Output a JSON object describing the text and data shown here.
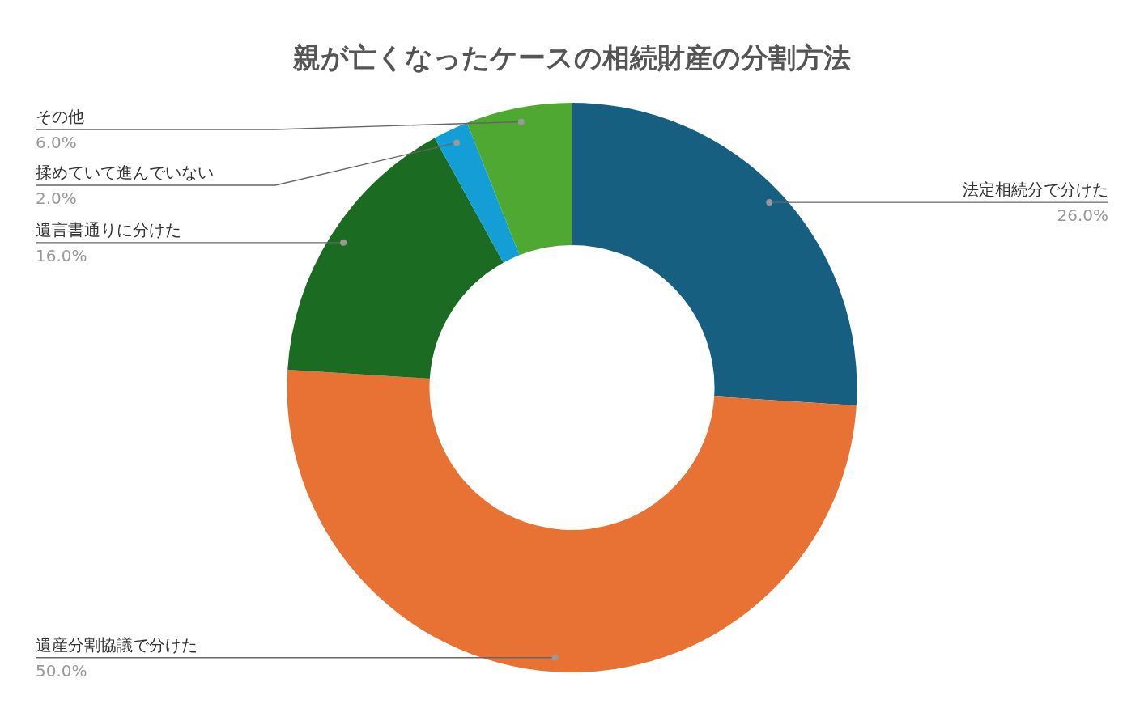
{
  "chart_data": {
    "type": "donut",
    "title": "親が亡くなったケースの相続財産の分割方法",
    "categories": [
      "法定相続分で分けた",
      "遺産分割協議で分けた",
      "遺言書通りに分けた",
      "揉めていて進んでいない",
      "その他"
    ],
    "values": [
      26,
      50,
      16,
      2,
      6
    ],
    "value_labels": [
      "26.0%",
      "50.0%",
      "16.0%",
      "2.0%",
      "6.0%"
    ],
    "colors": [
      "#175f80",
      "#e87233",
      "#1b6b23",
      "#139ed6",
      "#4ea832"
    ],
    "legend": false
  }
}
